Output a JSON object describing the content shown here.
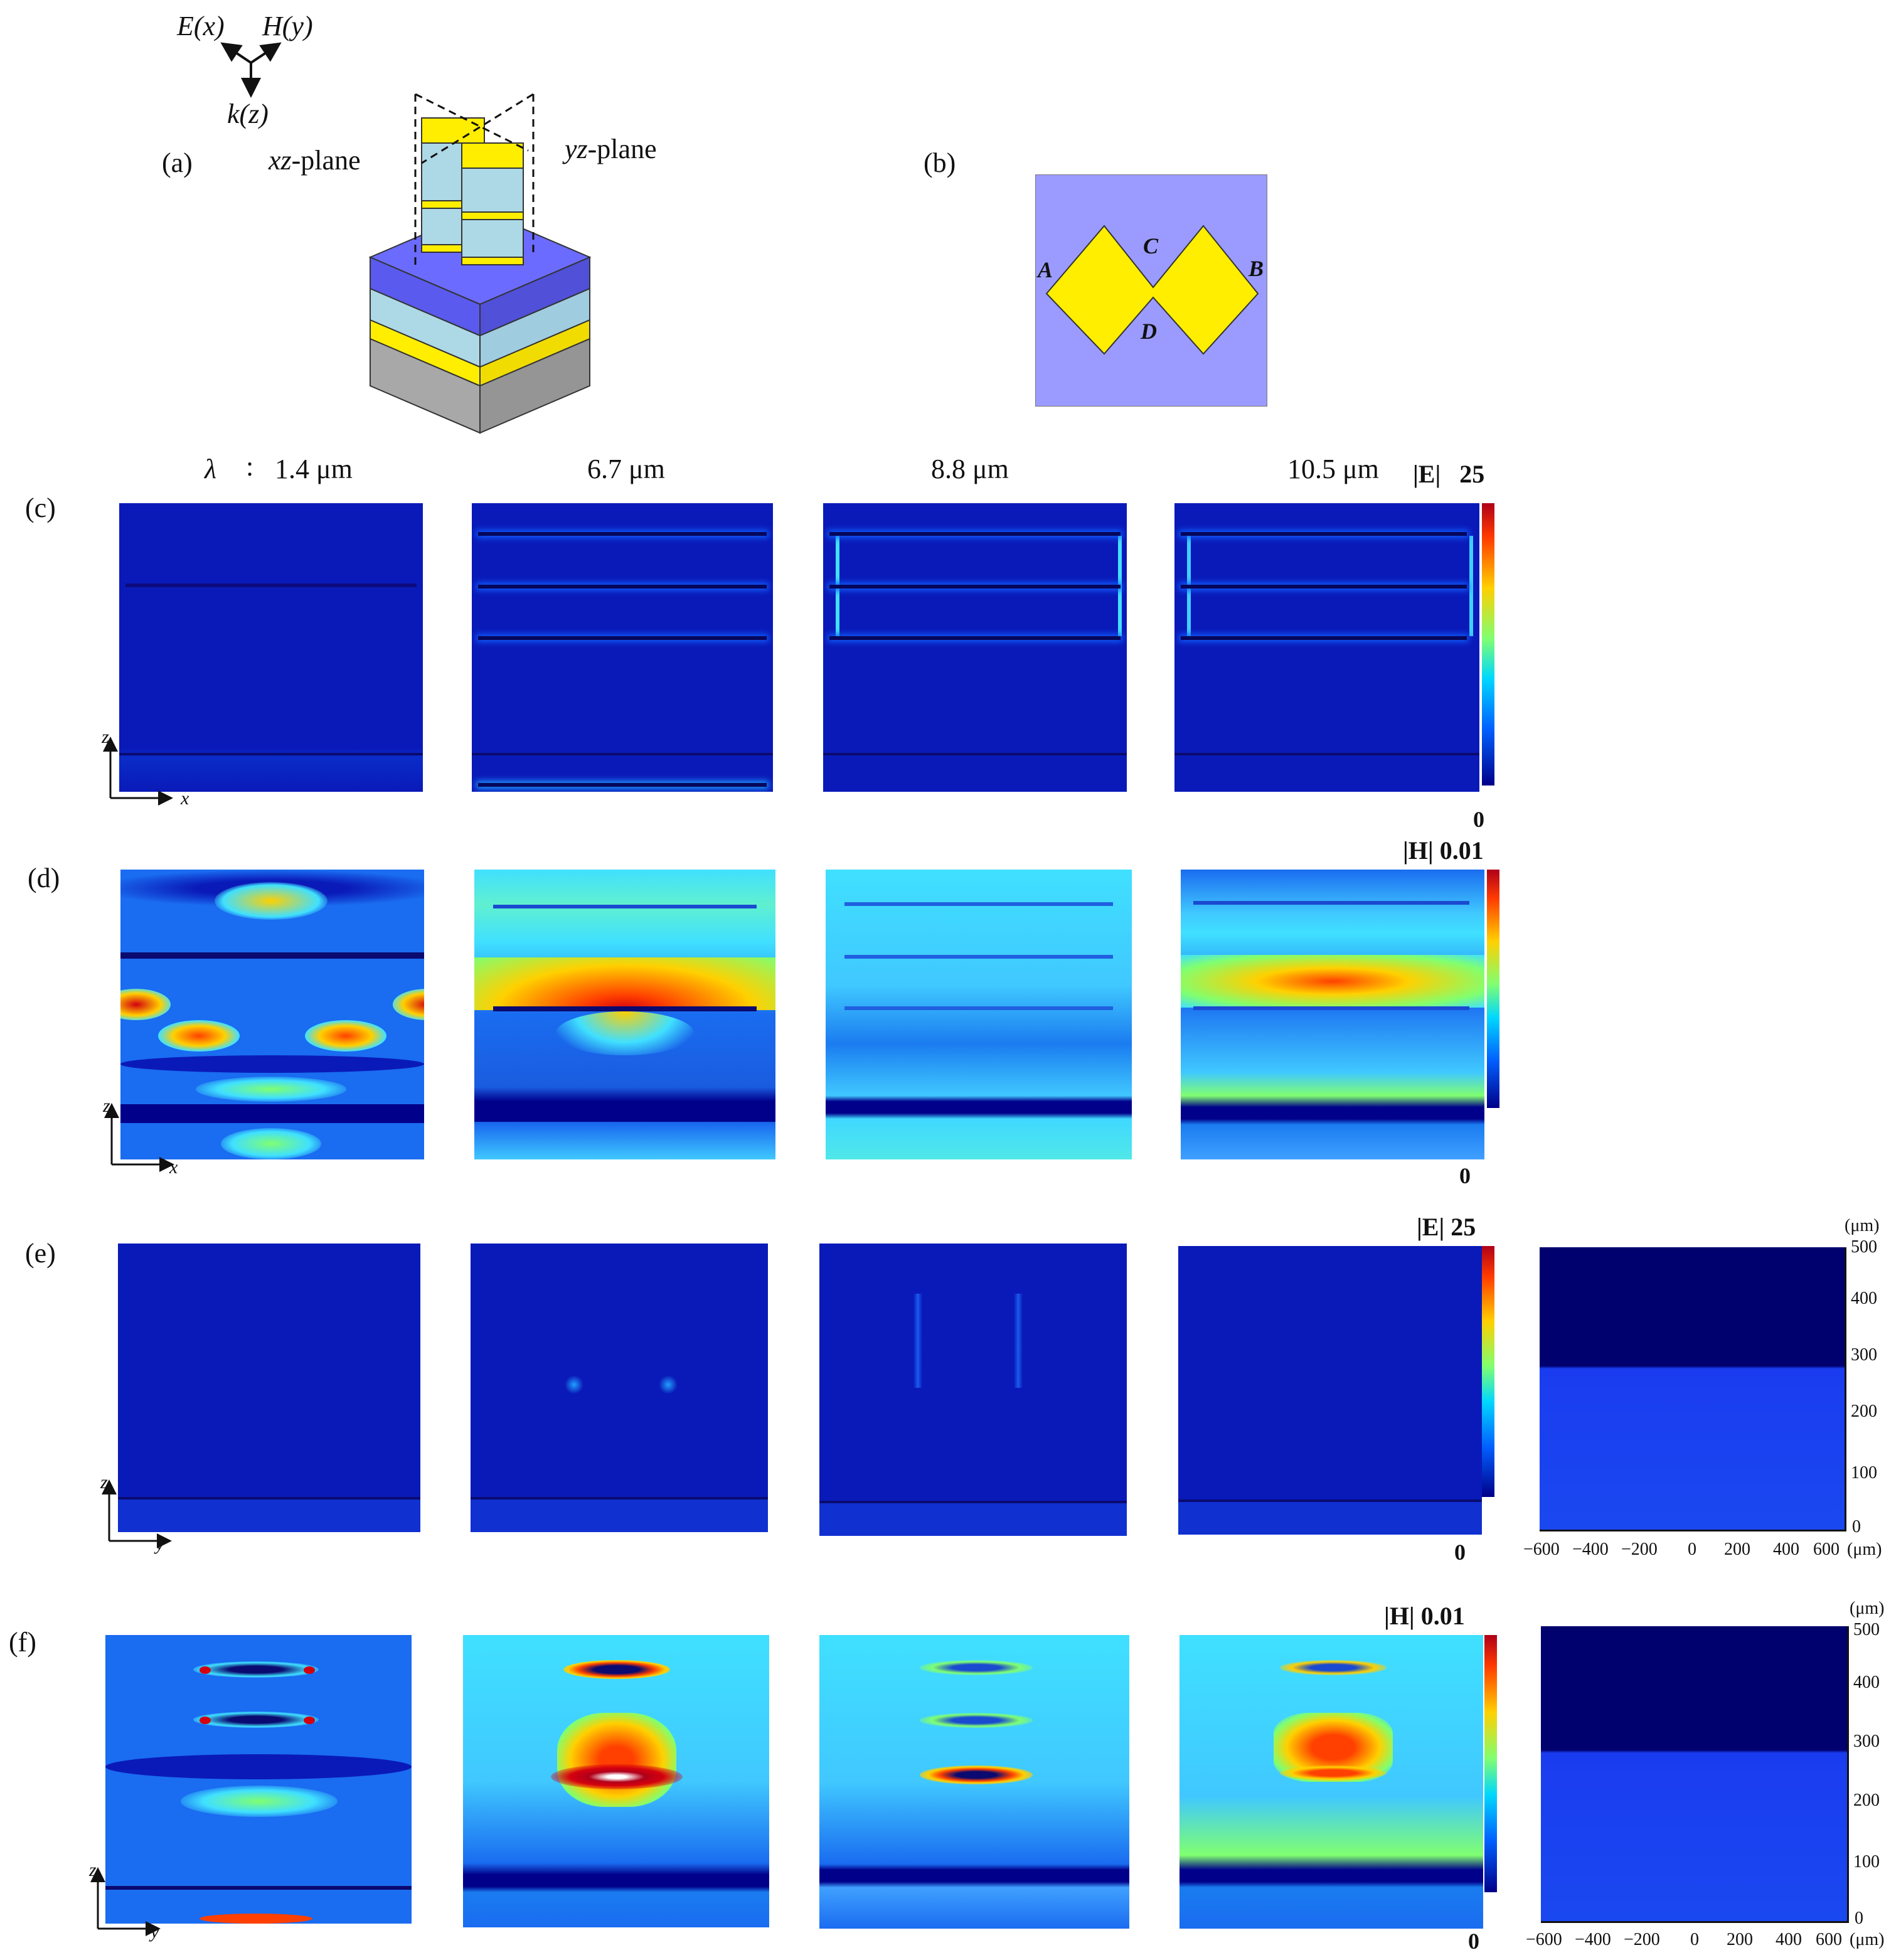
{
  "panel_labels": {
    "a": "(a)",
    "b": "(b)",
    "c": "(c)",
    "d": "(d)",
    "e": "(e)",
    "f": "(f)"
  },
  "axes_3d": {
    "ex": "E(x)",
    "hy": "H(y)",
    "kz": "k(z)"
  },
  "plane_labels": {
    "xz": "xz-plane",
    "yz": "yz-plane"
  },
  "top_view_points": {
    "a": "A",
    "b": "B",
    "c": "C",
    "d": "D"
  },
  "wavelength": {
    "symbol": "λ",
    "colon": ":",
    "w1": "1.4 μm",
    "w2": "6.7 μm",
    "w3": "8.8 μm",
    "w4": "10.5 μm"
  },
  "colorbars": {
    "c": {
      "label": "|E|",
      "max": "25",
      "min": "0"
    },
    "d": {
      "label": "|H| 0.01",
      "min": "0"
    },
    "e": {
      "label": "|E| 25",
      "min": "0"
    },
    "f": {
      "label": "|H| 0.01",
      "min": "0"
    }
  },
  "axis_letters": {
    "z": "z",
    "x": "x",
    "y": "y"
  },
  "side_plots": {
    "unit": "(μm)",
    "y_ticks": [
      "500",
      "400",
      "300",
      "200",
      "100",
      "0"
    ],
    "x_ticks": [
      "−600",
      "−400",
      "−200",
      "0",
      "200",
      "400",
      "600"
    ],
    "x_unit": "(μm)"
  },
  "colors": {
    "field_low": "#00008a",
    "field_mid": "#00a8ff",
    "field_high": "#ffd000",
    "field_peak": "#d4000f",
    "gold": "#ffee00",
    "dielectric": "#add8e6",
    "substrate_blue": "#6b6bff",
    "top_view_bg": "#9b9bff"
  }
}
